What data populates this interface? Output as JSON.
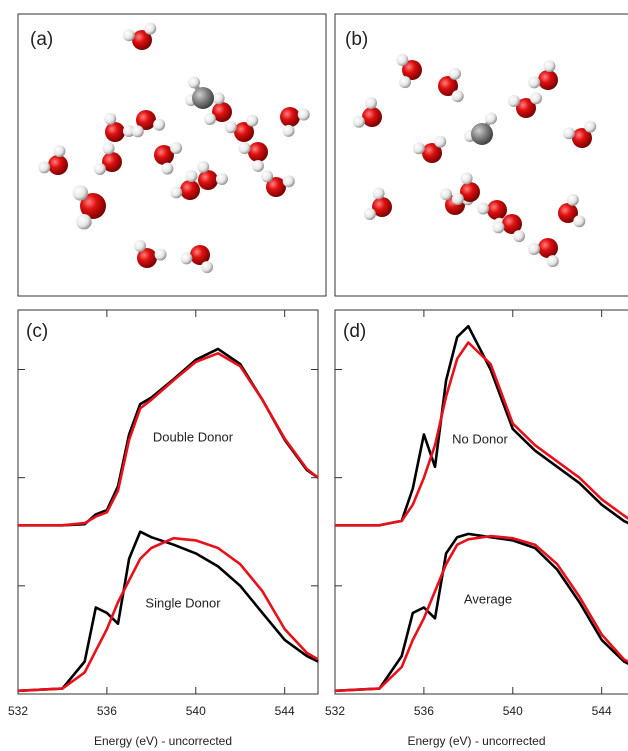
{
  "images": [
    {
      "label": "(a)"
    },
    {
      "label": "(b)"
    }
  ],
  "chart_data": [
    {
      "type": "line",
      "label": "(c)",
      "xlabel": "Energy (eV) - uncorrected",
      "x": [
        532,
        534,
        535,
        535.5,
        536,
        536.5,
        537,
        537.5,
        538,
        539,
        540,
        541,
        542,
        543,
        544,
        545,
        545.5
      ],
      "xlim": [
        532,
        545.5
      ],
      "xticks": [
        532,
        536,
        540,
        544
      ],
      "ylim": [
        0,
        3.55
      ],
      "yticks": [
        1,
        2,
        3
      ],
      "annotations": [
        "Double Donor",
        "Single Donor"
      ],
      "series": [
        {
          "color": "#000000",
          "values": [
            1.56,
            1.56,
            1.57,
            1.66,
            1.7,
            1.92,
            2.4,
            2.68,
            2.74,
            2.91,
            3.09,
            3.19,
            3.05,
            2.72,
            2.35,
            2.07,
            2.0
          ]
        },
        {
          "color": "#e8101a",
          "values": [
            1.56,
            1.56,
            1.58,
            1.64,
            1.68,
            1.88,
            2.35,
            2.64,
            2.72,
            2.9,
            3.07,
            3.15,
            3.03,
            2.72,
            2.36,
            2.08,
            2.0
          ]
        },
        {
          "color": "#000000",
          "values": [
            0.03,
            0.05,
            0.3,
            0.8,
            0.75,
            0.65,
            1.25,
            1.5,
            1.45,
            1.38,
            1.3,
            1.18,
            1.0,
            0.75,
            0.5,
            0.35,
            0.3
          ]
        },
        {
          "color": "#e8101a",
          "values": [
            0.03,
            0.05,
            0.2,
            0.4,
            0.6,
            0.85,
            1.05,
            1.25,
            1.35,
            1.44,
            1.42,
            1.35,
            1.2,
            0.95,
            0.6,
            0.38,
            0.32
          ]
        }
      ]
    },
    {
      "type": "line",
      "label": "(d)",
      "xlabel": "Energy (eV) - uncorrected",
      "x": [
        532,
        534,
        535,
        535.5,
        536,
        536.5,
        537,
        537.5,
        538,
        539,
        540,
        541,
        542,
        543,
        544,
        545,
        545.5
      ],
      "xlim": [
        532,
        545.5
      ],
      "xticks": [
        532,
        536,
        540,
        544
      ],
      "ylim": [
        0,
        3.55
      ],
      "yticks": [
        1,
        2,
        3
      ],
      "annotations": [
        "No Donor",
        "Average"
      ],
      "series": [
        {
          "color": "#000000",
          "values": [
            1.56,
            1.56,
            1.6,
            1.9,
            2.4,
            2.1,
            2.9,
            3.3,
            3.4,
            3.0,
            2.45,
            2.25,
            2.1,
            1.95,
            1.75,
            1.6,
            1.55
          ]
        },
        {
          "color": "#e8101a",
          "values": [
            1.56,
            1.56,
            1.6,
            1.75,
            2.0,
            2.3,
            2.75,
            3.1,
            3.25,
            3.05,
            2.5,
            2.3,
            2.15,
            2.0,
            1.8,
            1.65,
            1.58
          ]
        },
        {
          "color": "#000000",
          "values": [
            0.03,
            0.05,
            0.35,
            0.75,
            0.8,
            0.7,
            1.3,
            1.45,
            1.48,
            1.45,
            1.42,
            1.35,
            1.15,
            0.85,
            0.5,
            0.3,
            0.25
          ]
        },
        {
          "color": "#e8101a",
          "values": [
            0.03,
            0.05,
            0.25,
            0.5,
            0.7,
            0.95,
            1.2,
            1.38,
            1.43,
            1.46,
            1.44,
            1.38,
            1.2,
            0.9,
            0.55,
            0.32,
            0.27
          ]
        }
      ]
    }
  ]
}
